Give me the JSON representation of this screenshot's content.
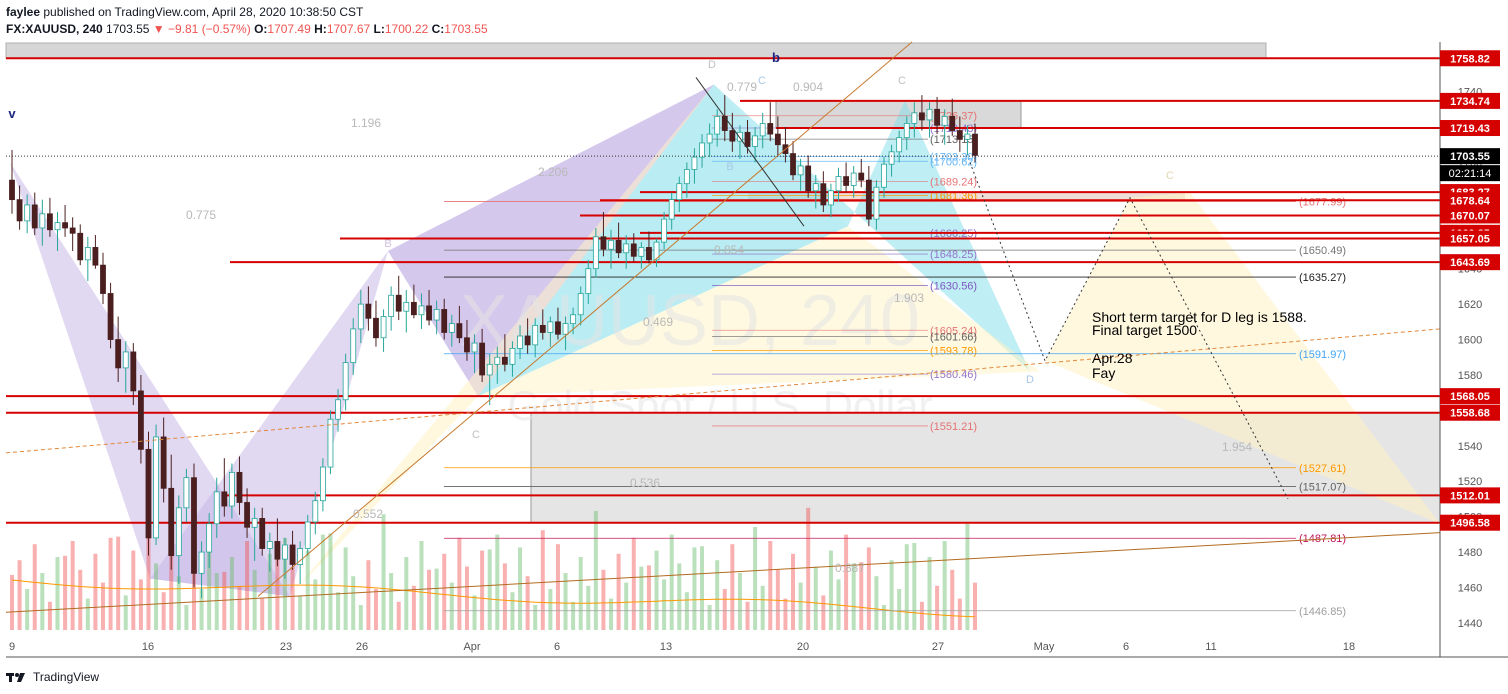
{
  "header": {
    "author": "faylee",
    "published_text": "published on TradingView.com, April 28, 2020 10:38:50 CST",
    "symbol": "FX:XAUUSD, 240",
    "last": "1703.55",
    "change": "▼ −9.81 (−0.57%)",
    "open_label": "O:",
    "open": "1707.49",
    "high_label": "H:",
    "high": "1707.67",
    "low_label": "L:",
    "low": "1700.22",
    "close_label": "C:",
    "close": "1703.55"
  },
  "footer": {
    "brand": "TradingView"
  },
  "colors": {
    "up": "#26a69a",
    "down": "#4b1f1f",
    "level_line": "#d50000",
    "purple_pattern": "#c9b8e8",
    "cyan_pattern": "#80deea",
    "yellow_pattern": "#fff3c4",
    "price_tag": "#d50000",
    "current_price_tag": "#000000"
  },
  "chart_data": {
    "type": "candlestick",
    "ylim": [
      1436,
      1768
    ],
    "y_ticks": [
      1440,
      1460,
      1480,
      1500,
      1520,
      1540,
      1560,
      1580,
      1600,
      1620,
      1640,
      1660,
      1680,
      1700,
      1720,
      1740
    ],
    "x_tick_labels": [
      "9",
      "16",
      "23",
      "26",
      "Apr",
      "6",
      "13",
      "20",
      "27",
      "May",
      "6",
      "11",
      "18"
    ],
    "current_price": "1703.55",
    "countdown": "02:21:14",
    "level_tags": [
      "1758.82",
      "1734.74",
      "1719.43",
      "1683.27",
      "1678.64",
      "1670.07",
      "1660.25",
      "1657.05",
      "1643.69",
      "1568.05",
      "1558.68",
      "1512.01",
      "1496.58"
    ],
    "fib_labels": [
      "(1726.37)",
      "(1719.43)",
      "(1713.15)",
      "(1703.30)",
      "(1700.62)",
      "(1689.24)",
      "(1681.36)",
      "(1677.99)",
      "(1660.25)",
      "(1650.49)",
      "(1648.25)",
      "(1635.27)",
      "(1630.56)",
      "(1605.24)",
      "(1601.66)",
      "(1593.78)",
      "(1591.97)",
      "(1580.46)",
      "(1551.21)",
      "(1527.61)",
      "(1517.07)",
      "(1487.81)",
      "(1446.85)"
    ],
    "pattern_labels": [
      "B",
      "C",
      "C",
      "C",
      "B",
      "C",
      "D",
      "D",
      "b",
      "v"
    ],
    "ratio_labels": [
      "0.779",
      "0.904",
      "1.196",
      "2.206",
      "0.775",
      "0.854",
      "1.903",
      "0.469",
      "1.954",
      "0.536",
      "0.552",
      "0.887"
    ],
    "watermark": [
      "XAUUSD, 240",
      "Gold Spot / U.S. Dollar"
    ],
    "annotation": [
      "Short term target for D leg is 1588.",
      "Final target 1500",
      "Apr.28",
      "Fay"
    ],
    "candles": [
      [
        1690,
        1707,
        1671,
        1679
      ],
      [
        1679,
        1687,
        1662,
        1667
      ],
      [
        1667,
        1682,
        1660,
        1676
      ],
      [
        1676,
        1683,
        1659,
        1663
      ],
      [
        1663,
        1679,
        1653,
        1671
      ],
      [
        1671,
        1680,
        1658,
        1662
      ],
      [
        1662,
        1672,
        1650,
        1666
      ],
      [
        1666,
        1676,
        1658,
        1663
      ],
      [
        1663,
        1669,
        1650,
        1660
      ],
      [
        1660,
        1665,
        1642,
        1645
      ],
      [
        1645,
        1658,
        1633,
        1652
      ],
      [
        1652,
        1659,
        1640,
        1642
      ],
      [
        1642,
        1649,
        1620,
        1626
      ],
      [
        1626,
        1632,
        1595,
        1600
      ],
      [
        1600,
        1613,
        1576,
        1584
      ],
      [
        1584,
        1599,
        1570,
        1593
      ],
      [
        1593,
        1598,
        1563,
        1571
      ],
      [
        1571,
        1580,
        1530,
        1538
      ],
      [
        1538,
        1548,
        1478,
        1488
      ],
      [
        1488,
        1552,
        1484,
        1545
      ],
      [
        1545,
        1556,
        1508,
        1516
      ],
      [
        1516,
        1535,
        1470,
        1478
      ],
      [
        1478,
        1512,
        1462,
        1505
      ],
      [
        1505,
        1527,
        1497,
        1522
      ],
      [
        1522,
        1530,
        1460,
        1468
      ],
      [
        1468,
        1486,
        1454,
        1480
      ],
      [
        1480,
        1502,
        1471,
        1496
      ],
      [
        1496,
        1522,
        1488,
        1514
      ],
      [
        1514,
        1533,
        1500,
        1506
      ],
      [
        1506,
        1530,
        1499,
        1525
      ],
      [
        1525,
        1534,
        1501,
        1508
      ],
      [
        1508,
        1516,
        1488,
        1494
      ],
      [
        1494,
        1505,
        1475,
        1499
      ],
      [
        1499,
        1505,
        1478,
        1482
      ],
      [
        1482,
        1491,
        1469,
        1486
      ],
      [
        1486,
        1499,
        1472,
        1476
      ],
      [
        1476,
        1488,
        1465,
        1484
      ],
      [
        1484,
        1492,
        1470,
        1473
      ],
      [
        1473,
        1486,
        1462,
        1482
      ],
      [
        1482,
        1501,
        1478,
        1497
      ],
      [
        1497,
        1514,
        1490,
        1509
      ],
      [
        1509,
        1533,
        1503,
        1528
      ],
      [
        1528,
        1560,
        1524,
        1555
      ],
      [
        1555,
        1572,
        1548,
        1566
      ],
      [
        1566,
        1592,
        1560,
        1587
      ],
      [
        1587,
        1612,
        1580,
        1606
      ],
      [
        1606,
        1628,
        1598,
        1620
      ],
      [
        1620,
        1630,
        1605,
        1612
      ],
      [
        1612,
        1622,
        1596,
        1601
      ],
      [
        1601,
        1617,
        1593,
        1613
      ],
      [
        1613,
        1630,
        1605,
        1625
      ],
      [
        1625,
        1636,
        1611,
        1616
      ],
      [
        1616,
        1628,
        1604,
        1621
      ],
      [
        1621,
        1631,
        1612,
        1614
      ],
      [
        1614,
        1626,
        1606,
        1619
      ],
      [
        1619,
        1628,
        1608,
        1611
      ],
      [
        1611,
        1622,
        1603,
        1617
      ],
      [
        1617,
        1623,
        1600,
        1604
      ],
      [
        1604,
        1614,
        1596,
        1609
      ],
      [
        1609,
        1619,
        1598,
        1601
      ],
      [
        1601,
        1611,
        1588,
        1593
      ],
      [
        1593,
        1603,
        1581,
        1598
      ],
      [
        1598,
        1606,
        1576,
        1580
      ],
      [
        1580,
        1592,
        1563,
        1586
      ],
      [
        1586,
        1596,
        1575,
        1590
      ],
      [
        1590,
        1603,
        1582,
        1586
      ],
      [
        1586,
        1599,
        1579,
        1595
      ],
      [
        1595,
        1608,
        1589,
        1602
      ],
      [
        1602,
        1612,
        1592,
        1597
      ],
      [
        1597,
        1612,
        1590,
        1608
      ],
      [
        1608,
        1617,
        1600,
        1604
      ],
      [
        1604,
        1613,
        1596,
        1610
      ],
      [
        1610,
        1618,
        1600,
        1603
      ],
      [
        1603,
        1613,
        1594,
        1609
      ],
      [
        1609,
        1618,
        1603,
        1614
      ],
      [
        1614,
        1630,
        1608,
        1626
      ],
      [
        1626,
        1645,
        1620,
        1640
      ],
      [
        1640,
        1663,
        1635,
        1658
      ],
      [
        1658,
        1672,
        1647,
        1651
      ],
      [
        1651,
        1662,
        1640,
        1656
      ],
      [
        1656,
        1666,
        1646,
        1649
      ],
      [
        1649,
        1659,
        1640,
        1654
      ],
      [
        1654,
        1660,
        1644,
        1647
      ],
      [
        1647,
        1655,
        1640,
        1652
      ],
      [
        1652,
        1661,
        1643,
        1645
      ],
      [
        1645,
        1657,
        1641,
        1655
      ],
      [
        1655,
        1672,
        1651,
        1668
      ],
      [
        1668,
        1683,
        1662,
        1679
      ],
      [
        1679,
        1692,
        1672,
        1688
      ],
      [
        1688,
        1700,
        1680,
        1696
      ],
      [
        1696,
        1708,
        1688,
        1703
      ],
      [
        1703,
        1716,
        1697,
        1711
      ],
      [
        1711,
        1722,
        1703,
        1716
      ],
      [
        1716,
        1730,
        1709,
        1726
      ],
      [
        1726,
        1738,
        1712,
        1718
      ],
      [
        1718,
        1728,
        1706,
        1712
      ],
      [
        1712,
        1721,
        1702,
        1717
      ],
      [
        1717,
        1724,
        1705,
        1709
      ],
      [
        1709,
        1720,
        1700,
        1715
      ],
      [
        1715,
        1728,
        1708,
        1722
      ],
      [
        1722,
        1734,
        1712,
        1716
      ],
      [
        1716,
        1726,
        1704,
        1710
      ],
      [
        1710,
        1720,
        1700,
        1705
      ],
      [
        1705,
        1712,
        1690,
        1693
      ],
      [
        1693,
        1702,
        1684,
        1698
      ],
      [
        1698,
        1704,
        1680,
        1684
      ],
      [
        1684,
        1693,
        1674,
        1688
      ],
      [
        1688,
        1695,
        1672,
        1676
      ],
      [
        1676,
        1688,
        1669,
        1684
      ],
      [
        1684,
        1697,
        1678,
        1692
      ],
      [
        1692,
        1700,
        1683,
        1687
      ],
      [
        1687,
        1698,
        1680,
        1694
      ],
      [
        1694,
        1702,
        1686,
        1690
      ],
      [
        1690,
        1698,
        1664,
        1668
      ],
      [
        1668,
        1690,
        1662,
        1686
      ],
      [
        1686,
        1703,
        1680,
        1699
      ],
      [
        1699,
        1710,
        1692,
        1706
      ],
      [
        1706,
        1718,
        1700,
        1714
      ],
      [
        1714,
        1726,
        1707,
        1722
      ],
      [
        1722,
        1734,
        1714,
        1728
      ],
      [
        1728,
        1738,
        1718,
        1724
      ],
      [
        1724,
        1734,
        1714,
        1730
      ],
      [
        1730,
        1737,
        1716,
        1721
      ],
      [
        1721,
        1730,
        1710,
        1726
      ],
      [
        1726,
        1736,
        1715,
        1718
      ],
      [
        1718,
        1726,
        1706,
        1713
      ],
      [
        1713,
        1721,
        1704,
        1716
      ],
      [
        1716,
        1722,
        1700,
        1704
      ]
    ]
  }
}
